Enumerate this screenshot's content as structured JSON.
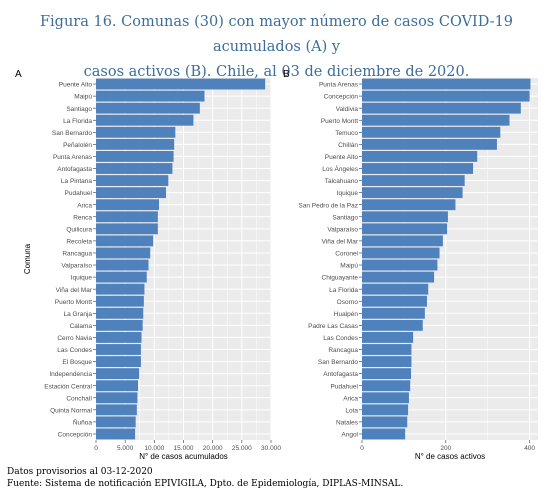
{
  "figure": {
    "title_line1": "Figura 16. Comunas (30) con mayor número de casos COVID-19 acumulados (A) y",
    "title_line2": "casos activos (B). Chile, al 03 de diciembre de 2020.",
    "footer_line1": "Datos provisorios al 03-12-2020",
    "footer_line2": "Fuente: Sistema de notificación EPIVIGILA, Dpto. de Epidemiología, DIPLAS-MINSAL."
  },
  "colors": {
    "bar": "#4f81bd",
    "panel_bg": "#ebebeb",
    "grid": "#ffffff",
    "title": "#3b6e9c"
  },
  "chart_data": [
    {
      "type": "bar",
      "orientation": "horizontal",
      "panel_label": "A",
      "ylabel": "Comuna",
      "xlabel": "N° de casos acumulados",
      "xlim": [
        0,
        30000
      ],
      "xticks": [
        0,
        5000,
        10000,
        15000,
        20000,
        25000,
        30000
      ],
      "xtick_labels": [
        "0",
        "5.000",
        "10.000",
        "15.000",
        "20.000",
        "25.000",
        "30.000"
      ],
      "grid": true,
      "categories": [
        "Puente Alto",
        "Maipú",
        "Santiago",
        "La Florida",
        "San Bernardo",
        "Peñalolén",
        "Punta Arenas",
        "Antofagasta",
        "La Pintana",
        "Pudahuel",
        "Arica",
        "Renca",
        "Quilicura",
        "Recoleta",
        "Rancagua",
        "Valparaíso",
        "Iquique",
        "Viña del Mar",
        "Puerto Montt",
        "La Granja",
        "Calama",
        "Cerro Navia",
        "Las Condes",
        "El Bosque",
        "Independencia",
        "Estación Central",
        "Conchalí",
        "Quinta Normal",
        "Ñuñoa",
        "Concepción"
      ],
      "values": [
        29000,
        18600,
        17800,
        16700,
        13600,
        13400,
        13300,
        13100,
        12400,
        12000,
        10800,
        10600,
        10600,
        9800,
        9300,
        9000,
        8700,
        8300,
        8200,
        8100,
        8000,
        7800,
        7700,
        7700,
        7400,
        7200,
        7100,
        7000,
        6800,
        6700
      ]
    },
    {
      "type": "bar",
      "orientation": "horizontal",
      "panel_label": "B",
      "ylabel": "",
      "xlabel": "N° de casos activos",
      "xlim": [
        0,
        420
      ],
      "xticks": [
        0,
        200,
        400
      ],
      "xtick_labels": [
        "0",
        "200",
        "400"
      ],
      "grid": true,
      "categories": [
        "Punta Arenas",
        "Concepción",
        "Valdivia",
        "Puerto Montt",
        "Temuco",
        "Chillán",
        "Puente Alto",
        "Los Ángeles",
        "Talcahuano",
        "Iquique",
        "San Pedro de la Paz",
        "Santiago",
        "Valparaíso",
        "Viña del Mar",
        "Coronel",
        "Maipú",
        "Chiguayante",
        "La Florida",
        "Osorno",
        "Hualpén",
        "Padre Las Casas",
        "Las Condes",
        "Rancagua",
        "San Bernardo",
        "Antofagasta",
        "Pudahuel",
        "Arica",
        "Lota",
        "Natales",
        "Angol"
      ],
      "values": [
        402,
        400,
        379,
        352,
        330,
        322,
        275,
        265,
        245,
        240,
        223,
        205,
        203,
        193,
        185,
        180,
        172,
        158,
        155,
        150,
        145,
        122,
        118,
        118,
        117,
        115,
        112,
        110,
        108,
        103
      ]
    }
  ]
}
